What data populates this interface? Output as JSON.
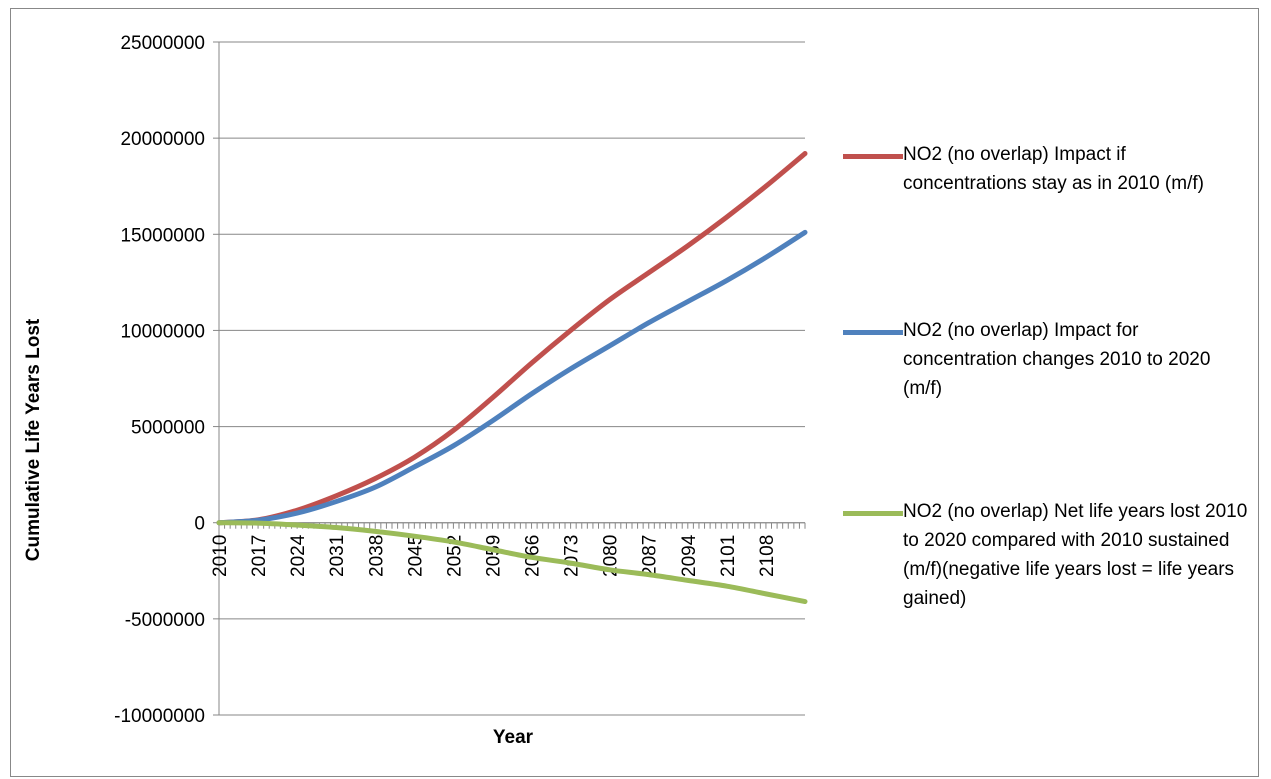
{
  "chart_data": {
    "type": "line",
    "xlabel": "Year",
    "ylabel": "Cumulative Life Years Lost",
    "x_start": 2010,
    "x_end": 2115,
    "x_tick_labels": [
      "2010",
      "2017",
      "2024",
      "2031",
      "2038",
      "2045",
      "2052",
      "2059",
      "2066",
      "2073",
      "2080",
      "2087",
      "2094",
      "2101",
      "2108"
    ],
    "ylim": [
      -10000000,
      25000000
    ],
    "y_tick_labels": [
      "25000000",
      "20000000",
      "15000000",
      "10000000",
      "5000000",
      "0",
      "-5000000",
      "-10000000"
    ],
    "grid": "horizontal",
    "legend_position": "right",
    "x": [
      2010,
      2017,
      2024,
      2031,
      2038,
      2045,
      2052,
      2059,
      2066,
      2073,
      2080,
      2087,
      2094,
      2101,
      2108,
      2115
    ],
    "series": [
      {
        "name": "NO2 (no overlap) Impact if concentrations stay as in 2010 (m/f)",
        "color": "#c0504d",
        "values": [
          0,
          150000,
          650000,
          1400000,
          2300000,
          3400000,
          4800000,
          6500000,
          8300000,
          10000000,
          11600000,
          13000000,
          14400000,
          15900000,
          17500000,
          19200000
        ]
      },
      {
        "name": "NO2 (no overlap) Impact for concentration changes 2010 to 2020 (m/f)",
        "color": "#4f81bd",
        "values": [
          0,
          130000,
          500000,
          1100000,
          1850000,
          2900000,
          4000000,
          5300000,
          6700000,
          8000000,
          9200000,
          10400000,
          11500000,
          12600000,
          13800000,
          15100000
        ]
      },
      {
        "name": "NO2 (no overlap) Net life years lost 2010 to 2020 compared with 2010 sustained (m/f)(negative life years lost = life years gained)",
        "color": "#9bbb59",
        "values": [
          0,
          -20000,
          -120000,
          -250000,
          -450000,
          -700000,
          -1000000,
          -1400000,
          -1800000,
          -2100000,
          -2450000,
          -2700000,
          -3000000,
          -3300000,
          -3700000,
          -4100000
        ]
      }
    ]
  }
}
